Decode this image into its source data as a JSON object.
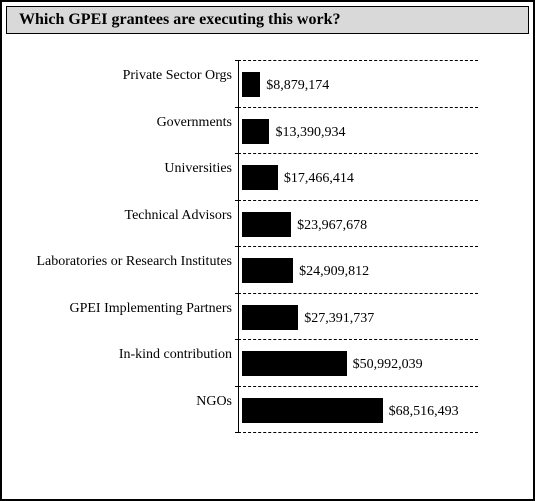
{
  "chart_data": {
    "type": "bar",
    "orientation": "horizontal",
    "title": "Which GPEI grantees are executing this work?",
    "categories": [
      "Private Sector Orgs",
      "Governments",
      "Universities",
      "Technical Advisors",
      "Laboratories or Research Institutes",
      "GPEI Implementing Partners",
      "In-kind contribution",
      "NGOs"
    ],
    "values": [
      8879174,
      13390934,
      17466414,
      23967678,
      24909812,
      27391737,
      50992039,
      68516493
    ],
    "value_labels": [
      "$8,879,174",
      "$13,390,934",
      "$17,466,414",
      "$23,967,678",
      "$24,909,812",
      "$27,391,737",
      "$50,992,039",
      "$68,516,493"
    ],
    "color": "#000000",
    "xlim": [
      0,
      115000000
    ],
    "grid": true
  }
}
